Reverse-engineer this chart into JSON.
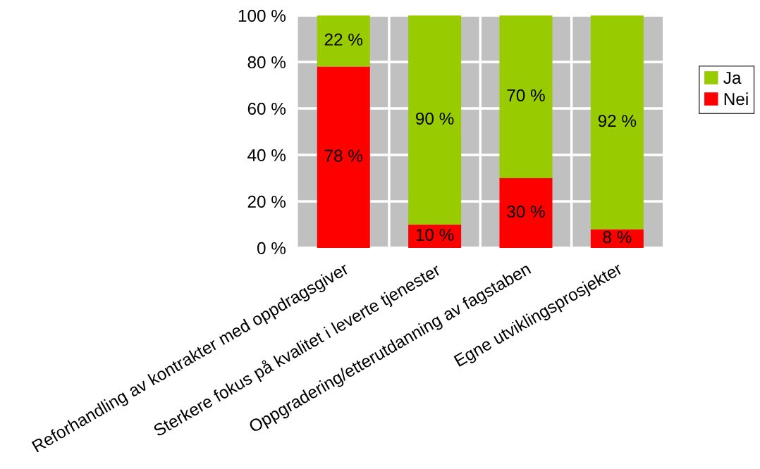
{
  "chart_data": {
    "type": "bar",
    "stacked": true,
    "categories": [
      "Reforhandling av kontrakter med oppdragsgiver",
      "Sterkere fokus på kvalitet i leverte tjenester",
      "Oppgradering/etterutdanning av fagstaben",
      "Egne utviklingsprosjekter"
    ],
    "series": [
      {
        "name": "Nei",
        "color": "#ff0000",
        "values": [
          78,
          10,
          30,
          8
        ],
        "value_labels": [
          "78 %",
          "10 %",
          "30 %",
          "8 %"
        ]
      },
      {
        "name": "Ja",
        "color": "#99cc00",
        "values": [
          22,
          90,
          70,
          92
        ],
        "value_labels": [
          "22 %",
          "90 %",
          "70 %",
          "92 %"
        ]
      }
    ],
    "ylim": [
      0,
      100
    ],
    "yticks": [
      {
        "value": 0,
        "label": "0 %"
      },
      {
        "value": 20,
        "label": "20 %"
      },
      {
        "value": 40,
        "label": "40 %"
      },
      {
        "value": 60,
        "label": "60 %"
      },
      {
        "value": 80,
        "label": "80 %"
      },
      {
        "value": 100,
        "label": "100 %"
      }
    ],
    "grid": true,
    "legend": "right"
  }
}
